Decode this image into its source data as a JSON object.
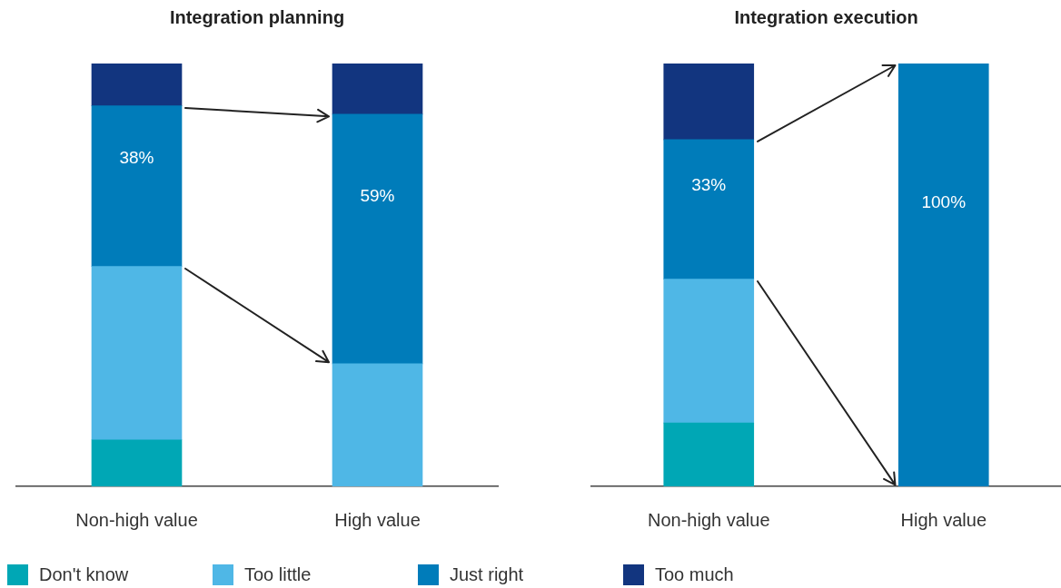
{
  "chart_data": [
    {
      "type": "bar",
      "title": "Integration planning",
      "categories": [
        "Non-high value",
        "High value"
      ],
      "stacked": true,
      "tick_labels": "x",
      "grid": false,
      "legend": "bottom",
      "series": [
        {
          "name": "Don't know",
          "color": "#00a7b5",
          "values": [
            11,
            null
          ]
        },
        {
          "name": "Too little",
          "color": "#4fb7e6",
          "values": [
            41,
            29
          ]
        },
        {
          "name": "Just right",
          "color": "#007cba",
          "values": [
            38,
            59
          ],
          "value_labels": [
            "38%",
            "59%"
          ]
        },
        {
          "name": "Too much",
          "color": "#12357f",
          "values": [
            10,
            12
          ]
        }
      ]
    },
    {
      "type": "bar",
      "title": "Integration execution",
      "categories": [
        "Non-high value",
        "High value"
      ],
      "stacked": true,
      "tick_labels": "x",
      "grid": false,
      "series": [
        {
          "color": "#00a7b5",
          "values": [
            15,
            null
          ]
        },
        {
          "color": "#4fb7e6",
          "values": [
            34,
            null
          ]
        },
        {
          "color": "#007cba",
          "values": [
            33,
            100
          ],
          "value_labels": [
            "33%",
            "100%"
          ]
        },
        {
          "color": "#12357f",
          "values": [
            18,
            null
          ]
        }
      ]
    }
  ]
}
